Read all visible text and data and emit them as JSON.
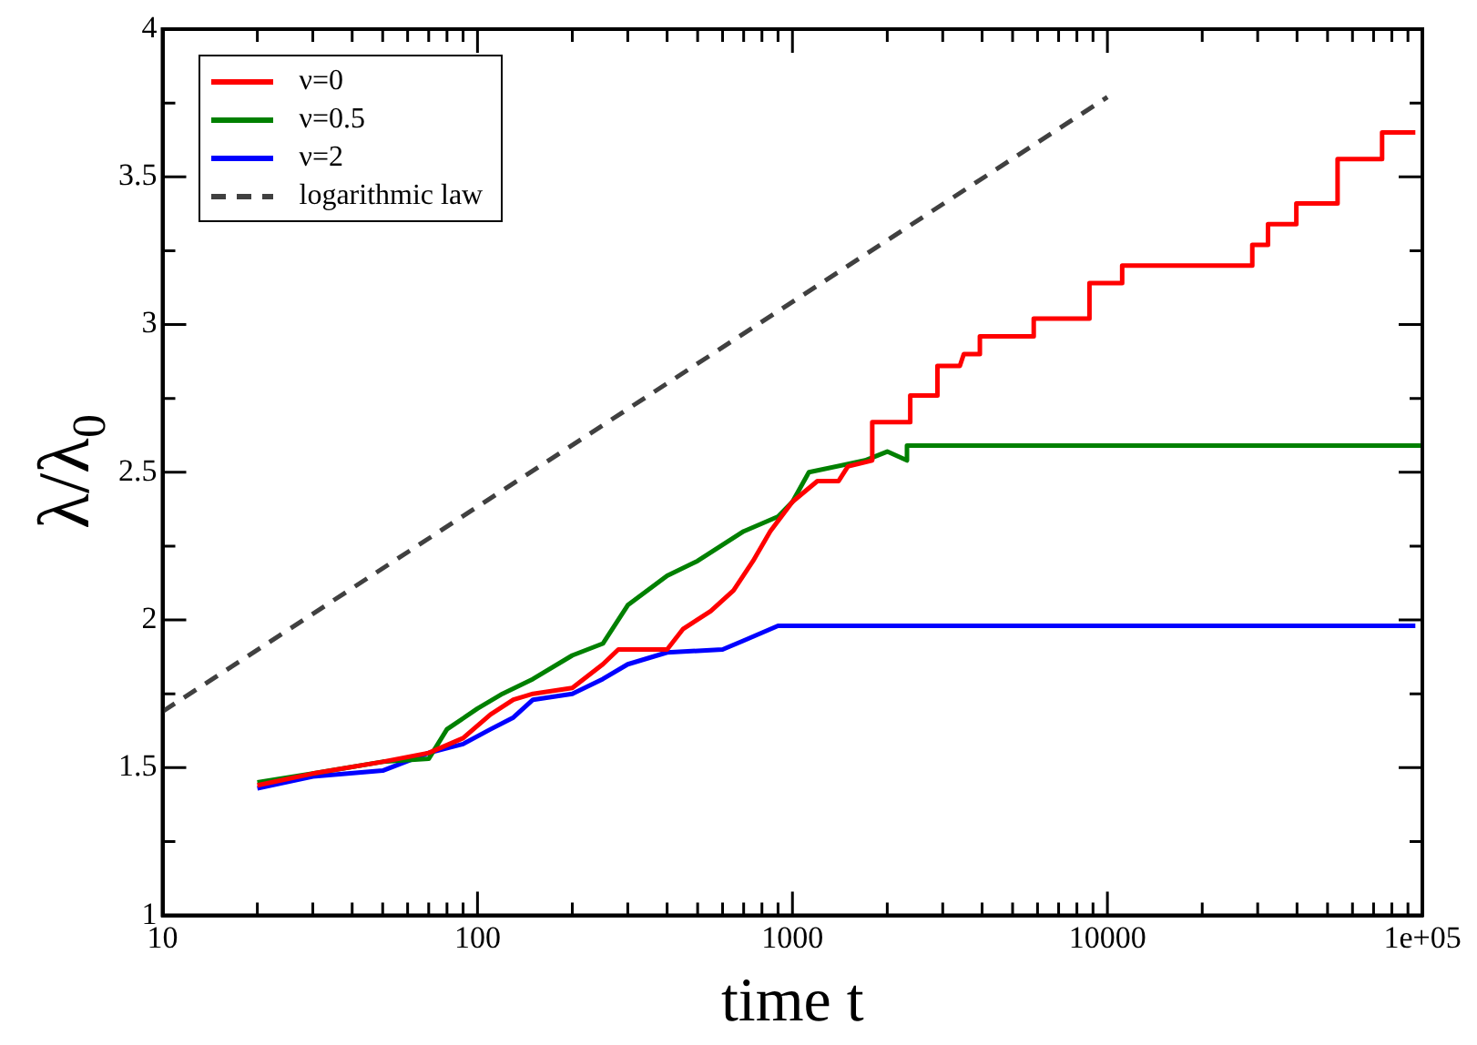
{
  "chart_data": {
    "type": "line",
    "xlabel": "time t",
    "ylabel": "λ/λ$_{0}$",
    "log": "x",
    "xlim": [
      10,
      100000
    ],
    "ylim": [
      1,
      4
    ],
    "xticks": [
      10,
      {
        "value": 20,
        "label": null
      },
      {
        "value": 30,
        "label": null
      },
      {
        "value": 40,
        "label": null
      },
      {
        "value": 50,
        "label": null
      },
      {
        "value": 60,
        "label": null
      },
      {
        "value": 70,
        "label": null
      },
      {
        "value": 80,
        "label": null
      },
      {
        "value": 90,
        "label": null
      },
      100,
      {
        "value": 200,
        "label": null
      },
      {
        "value": 300,
        "label": null
      },
      {
        "value": 400,
        "label": null
      },
      {
        "value": 500,
        "label": null
      },
      {
        "value": 600,
        "label": null
      },
      {
        "value": 700,
        "label": null
      },
      {
        "value": 800,
        "label": null
      },
      {
        "value": 900,
        "label": null
      },
      1000,
      {
        "value": 2000,
        "label": null
      },
      {
        "value": 3000,
        "label": null
      },
      {
        "value": 4000,
        "label": null
      },
      {
        "value": 5000,
        "label": null
      },
      {
        "value": 6000,
        "label": null
      },
      {
        "value": 7000,
        "label": null
      },
      {
        "value": 8000,
        "label": null
      },
      {
        "value": 9000,
        "label": null
      },
      10000,
      {
        "value": 20000,
        "label": null
      },
      {
        "value": 30000,
        "label": null
      },
      {
        "value": 40000,
        "label": null
      },
      {
        "value": 50000,
        "label": null
      },
      {
        "value": 60000,
        "label": null
      },
      {
        "value": 70000,
        "label": null
      },
      {
        "value": 80000,
        "label": null
      },
      {
        "value": 90000,
        "label": null
      },
      {
        "value": 100000,
        "label": "1e+05"
      }
    ],
    "yticks": [
      1,
      {
        "value": 1.25,
        "label": null
      },
      1.5,
      {
        "value": 1.75,
        "label": null
      },
      2,
      {
        "value": 2.25,
        "label": null
      },
      2.5,
      {
        "value": 2.75,
        "label": null
      },
      3,
      {
        "value": 3.25,
        "label": null
      },
      3.5,
      {
        "value": 3.75,
        "label": null
      },
      4
    ],
    "grid": false,
    "legend": "top left",
    "marker": "none",
    "series": [
      {
        "name": "ν=0",
        "color": "#ff0000",
        "line_style": "solid",
        "x": [
          20,
          30,
          50,
          70,
          90,
          110,
          130,
          150,
          200,
          250,
          280,
          400,
          450,
          550,
          650,
          750,
          850,
          1000,
          1200,
          1400,
          1500,
          1792,
          1792,
          2366,
          2366,
          2886,
          2886,
          3400,
          3500,
          3936,
          3936,
          5835,
          5835,
          8770,
          8770,
          11140,
          11140,
          28840,
          28840,
          32350,
          32350,
          39800,
          39800,
          53800,
          53800,
          74500,
          74500,
          95000
        ],
        "values": [
          1.44,
          1.48,
          1.52,
          1.55,
          1.6,
          1.68,
          1.73,
          1.75,
          1.77,
          1.85,
          1.9,
          1.9,
          1.97,
          2.03,
          2.1,
          2.2,
          2.3,
          2.4,
          2.47,
          2.47,
          2.52,
          2.54,
          2.67,
          2.67,
          2.76,
          2.76,
          2.86,
          2.86,
          2.9,
          2.9,
          2.96,
          2.96,
          3.02,
          3.02,
          3.14,
          3.14,
          3.2,
          3.2,
          3.27,
          3.27,
          3.34,
          3.34,
          3.41,
          3.41,
          3.56,
          3.56,
          3.65,
          3.65
        ]
      },
      {
        "name": "ν=0.5",
        "color": "#008000",
        "line_style": "solid",
        "x": [
          20,
          30,
          50,
          70,
          80,
          100,
          120,
          150,
          200,
          250,
          300,
          400,
          500,
          700,
          900,
          1000,
          1128,
          1700,
          2000,
          2310,
          2310,
          100000
        ],
        "values": [
          1.45,
          1.48,
          1.52,
          1.53,
          1.63,
          1.7,
          1.75,
          1.8,
          1.88,
          1.92,
          2.05,
          2.15,
          2.2,
          2.3,
          2.35,
          2.4,
          2.5,
          2.54,
          2.57,
          2.54,
          2.59,
          2.59
        ]
      },
      {
        "name": "ν=2",
        "color": "#0000ff",
        "line_style": "solid",
        "x": [
          20,
          30,
          50,
          70,
          90,
          110,
          130,
          150,
          200,
          250,
          300,
          400,
          600,
          700,
          900,
          95000
        ],
        "values": [
          1.43,
          1.47,
          1.49,
          1.55,
          1.58,
          1.63,
          1.67,
          1.73,
          1.75,
          1.8,
          1.85,
          1.89,
          1.9,
          1.93,
          1.98,
          1.98
        ]
      },
      {
        "name": "logarithmic law",
        "color": "#404040",
        "line_style": "dashed",
        "x": [
          10,
          10000
        ],
        "values": [
          1.69,
          3.77
        ]
      }
    ]
  }
}
